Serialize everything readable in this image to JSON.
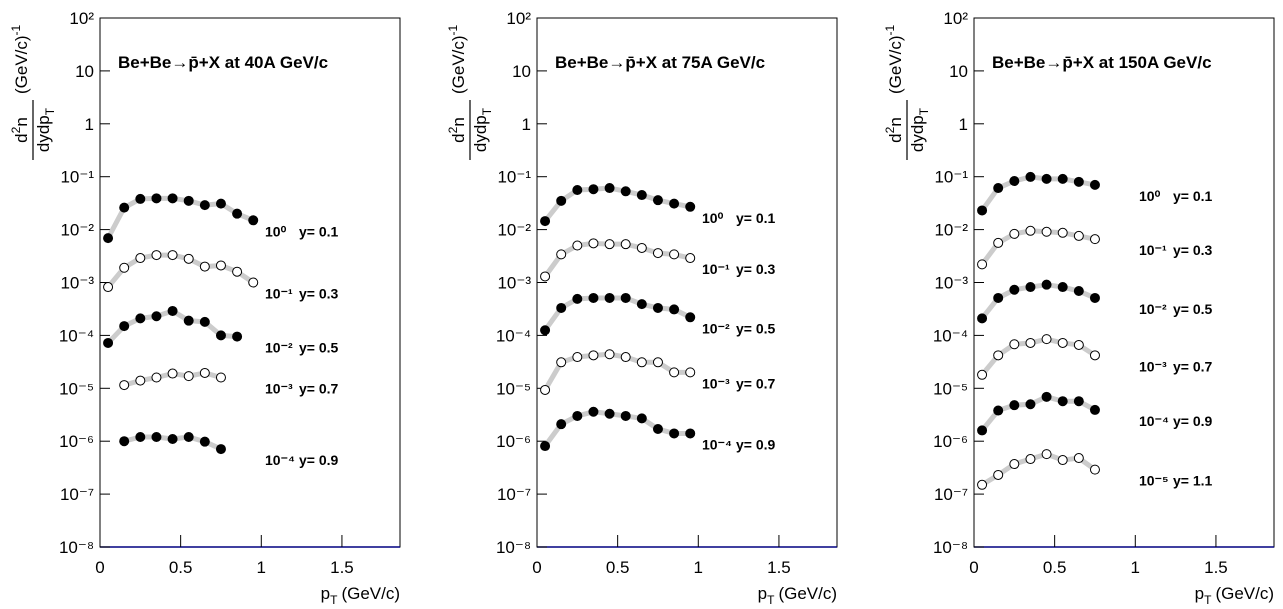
{
  "chart_data": [
    {
      "type": "line",
      "title": "Be+Be→p̄+X at 40A GeV/c",
      "xlabel": {
        "text": "p",
        "sub": "T",
        "unit": "(GeV/c)"
      },
      "ylabel": {
        "num": "d",
        "num_sup": "2",
        "num_end": "n",
        "den": "dydp",
        "den_sub": "T",
        "unit": "(GeV/c)",
        "unit_sup": "-1"
      },
      "log_y": true,
      "xlim": [
        0,
        1.86
      ],
      "ylim": [
        1e-08,
        100
      ],
      "xticks": [
        0,
        0.5,
        1,
        1.5
      ],
      "yticks": [
        {
          "value": 100,
          "label": "10²"
        },
        10,
        1,
        {
          "value": 0.1,
          "label": "10⁻¹"
        },
        {
          "value": 0.01,
          "label": "10⁻²"
        },
        {
          "value": 0.001,
          "label": "10⁻³"
        },
        {
          "value": 0.0001,
          "label": "10⁻⁴"
        },
        {
          "value": 1e-05,
          "label": "10⁻⁵"
        },
        {
          "value": 1e-06,
          "label": "10⁻⁶"
        },
        {
          "value": 1e-07,
          "label": "10⁻⁷"
        },
        {
          "value": 1e-08,
          "label": "10⁻⁸"
        }
      ],
      "x": [
        0.05,
        0.15,
        0.25,
        0.35,
        0.45,
        0.55,
        0.65,
        0.75,
        0.85,
        0.95
      ],
      "series": [
        {
          "name": "y= 0.1",
          "scale": "10⁰",
          "marker": "filled",
          "color": "#000000",
          "line_color": "#cccccc",
          "values": [
            0.0069,
            0.026,
            0.038,
            0.039,
            0.039,
            0.035,
            0.029,
            0.031,
            0.02,
            0.015
          ]
        },
        {
          "name": "y= 0.3",
          "scale": "10⁻¹",
          "marker": "open",
          "color": "#000000",
          "line_color": "#cccccc",
          "values": [
            0.00082,
            0.0019,
            0.0029,
            0.0033,
            0.0033,
            0.0028,
            0.002,
            0.0021,
            0.0016,
            0.001
          ]
        },
        {
          "name": "y= 0.5",
          "scale": "10⁻²",
          "marker": "filled",
          "color": "#000000",
          "line_color": "#cccccc",
          "values": [
            7.2e-05,
            0.00015,
            0.00021,
            0.00023,
            0.00029,
            0.00019,
            0.00018,
            0.0001,
            9.5e-05,
            null
          ]
        },
        {
          "name": "y= 0.7",
          "scale": "10⁻³",
          "marker": "open",
          "color": "#000000",
          "line_color": "#cccccc",
          "values": [
            null,
            1.15e-05,
            1.4e-05,
            1.6e-05,
            1.9e-05,
            1.7e-05,
            1.95e-05,
            1.6e-05,
            null,
            null
          ]
        },
        {
          "name": "y= 0.9",
          "scale": "10⁻⁴",
          "marker": "filled",
          "color": "#000000",
          "line_color": "#cccccc",
          "values": [
            null,
            1e-06,
            1.2e-06,
            1.2e-06,
            1.1e-06,
            1.2e-06,
            9.8e-07,
            7.1e-07,
            null,
            null
          ]
        }
      ]
    },
    {
      "type": "line",
      "title": "Be+Be→p̄+X at 75A GeV/c",
      "xlabel": {
        "text": "p",
        "sub": "T",
        "unit": "(GeV/c)"
      },
      "ylabel": {
        "num": "d",
        "num_sup": "2",
        "num_end": "n",
        "den": "dydp",
        "den_sub": "T",
        "unit": "(GeV/c)",
        "unit_sup": "-1"
      },
      "log_y": true,
      "xlim": [
        0,
        1.86
      ],
      "ylim": [
        1e-08,
        100
      ],
      "xticks": [
        0,
        0.5,
        1,
        1.5
      ],
      "yticks": [
        {
          "value": 100,
          "label": "10²"
        },
        10,
        1,
        {
          "value": 0.1,
          "label": "10⁻¹"
        },
        {
          "value": 0.01,
          "label": "10⁻²"
        },
        {
          "value": 0.001,
          "label": "10⁻³"
        },
        {
          "value": 0.0001,
          "label": "10⁻⁴"
        },
        {
          "value": 1e-05,
          "label": "10⁻⁵"
        },
        {
          "value": 1e-06,
          "label": "10⁻⁶"
        },
        {
          "value": 1e-07,
          "label": "10⁻⁷"
        },
        {
          "value": 1e-08,
          "label": "10⁻⁸"
        }
      ],
      "x": [
        0.05,
        0.15,
        0.25,
        0.35,
        0.45,
        0.55,
        0.65,
        0.75,
        0.85,
        0.95
      ],
      "series": [
        {
          "name": "y= 0.1",
          "scale": "10⁰",
          "marker": "filled",
          "color": "#000000",
          "line_color": "#cccccc",
          "values": [
            0.0145,
            0.035,
            0.056,
            0.058,
            0.061,
            0.053,
            0.045,
            0.036,
            0.031,
            0.027
          ]
        },
        {
          "name": "y= 0.3",
          "scale": "10⁻¹",
          "marker": "open",
          "color": "#000000",
          "line_color": "#cccccc",
          "values": [
            0.0013,
            0.0034,
            0.005,
            0.0055,
            0.0053,
            0.0053,
            0.0045,
            0.0036,
            0.0034,
            0.0029
          ]
        },
        {
          "name": "y= 0.5",
          "scale": "10⁻²",
          "marker": "filled",
          "color": "#000000",
          "line_color": "#cccccc",
          "values": [
            0.000125,
            0.00033,
            0.00049,
            0.00051,
            0.00051,
            0.00051,
            0.00039,
            0.00033,
            0.00031,
            0.00022
          ]
        },
        {
          "name": "y= 0.7",
          "scale": "10⁻³",
          "marker": "open",
          "color": "#000000",
          "line_color": "#cccccc",
          "values": [
            9.3e-06,
            3.1e-05,
            3.9e-05,
            4.2e-05,
            4.4e-05,
            3.9e-05,
            3.1e-05,
            3.1e-05,
            2e-05,
            2e-05
          ]
        },
        {
          "name": "y= 0.9",
          "scale": "10⁻⁴",
          "marker": "filled",
          "color": "#000000",
          "line_color": "#cccccc",
          "values": [
            8.1e-07,
            2.1e-06,
            3e-06,
            3.6e-06,
            3.3e-06,
            3e-06,
            2.7e-06,
            1.7e-06,
            1.4e-06,
            1.4e-06
          ]
        }
      ]
    },
    {
      "type": "line",
      "title": "Be+Be→p̄+X at 150A GeV/c",
      "xlabel": {
        "text": "p",
        "sub": "T",
        "unit": "(GeV/c)"
      },
      "ylabel": {
        "num": "d",
        "num_sup": "2",
        "num_end": "n",
        "den": "dydp",
        "den_sub": "T",
        "unit": "(GeV/c)",
        "unit_sup": "-1"
      },
      "log_y": true,
      "xlim": [
        0,
        1.86
      ],
      "ylim": [
        1e-08,
        100
      ],
      "xticks": [
        0,
        0.5,
        1,
        1.5
      ],
      "yticks": [
        {
          "value": 100,
          "label": "10²"
        },
        10,
        1,
        {
          "value": 0.1,
          "label": "10⁻¹"
        },
        {
          "value": 0.01,
          "label": "10⁻²"
        },
        {
          "value": 0.001,
          "label": "10⁻³"
        },
        {
          "value": 0.0001,
          "label": "10⁻⁴"
        },
        {
          "value": 1e-05,
          "label": "10⁻⁵"
        },
        {
          "value": 1e-06,
          "label": "10⁻⁶"
        },
        {
          "value": 1e-07,
          "label": "10⁻⁷"
        },
        {
          "value": 1e-08,
          "label": "10⁻⁸"
        }
      ],
      "x": [
        0.05,
        0.15,
        0.25,
        0.35,
        0.45,
        0.55,
        0.65,
        0.75
      ],
      "series": [
        {
          "name": "y= 0.1",
          "scale": "10⁰",
          "marker": "filled",
          "color": "#000000",
          "line_color": "#cccccc",
          "values": [
            0.023,
            0.061,
            0.083,
            0.099,
            0.091,
            0.091,
            0.08,
            0.07
          ]
        },
        {
          "name": "y= 0.3",
          "scale": "10⁻¹",
          "marker": "open",
          "color": "#000000",
          "line_color": "#cccccc",
          "values": [
            0.0022,
            0.0056,
            0.0083,
            0.0095,
            0.0091,
            0.0087,
            0.0076,
            0.0066
          ]
        },
        {
          "name": "y= 0.5",
          "scale": "10⁻²",
          "marker": "filled",
          "color": "#000000",
          "line_color": "#cccccc",
          "values": [
            0.00021,
            0.00051,
            0.00073,
            0.00082,
            0.00091,
            0.00082,
            0.00069,
            0.00051
          ]
        },
        {
          "name": "y= 0.7",
          "scale": "10⁻³",
          "marker": "open",
          "color": "#000000",
          "line_color": "#cccccc",
          "values": [
            1.8e-05,
            4.2e-05,
            6.8e-05,
            7.2e-05,
            8.5e-05,
            7.2e-05,
            6.6e-05,
            4.2e-05
          ]
        },
        {
          "name": "y= 0.9",
          "scale": "10⁻⁴",
          "marker": "filled",
          "color": "#000000",
          "line_color": "#cccccc",
          "values": [
            1.6e-06,
            3.8e-06,
            4.8e-06,
            5e-06,
            6.9e-06,
            5.7e-06,
            5.7e-06,
            3.9e-06
          ]
        },
        {
          "name": "y= 1.1",
          "scale": "10⁻⁵",
          "marker": "open",
          "color": "#000000",
          "line_color": "#cccccc",
          "values": [
            1.5e-07,
            2.3e-07,
            3.7e-07,
            4.6e-07,
            5.7e-07,
            4.4e-07,
            4.8e-07,
            2.9e-07
          ]
        }
      ]
    }
  ]
}
